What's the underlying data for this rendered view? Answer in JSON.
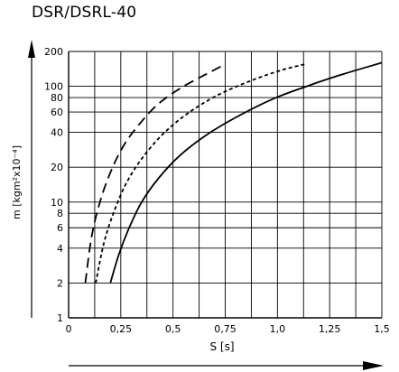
{
  "title": "DSR/DSRL-40",
  "chart_data": {
    "type": "line",
    "title": "DSR/DSRL-40",
    "xlabel": "S [s]",
    "ylabel": "m [kgm²x10⁻⁴]",
    "y_scale": "log",
    "xlim": [
      0,
      1.5
    ],
    "ylim": [
      1,
      200
    ],
    "x_ticks": [
      0,
      0.25,
      0.5,
      0.75,
      1.0,
      1.25,
      1.5
    ],
    "x_tick_labels": [
      "0",
      "0,25",
      "0,5",
      "0,75",
      "1,0",
      "1,25",
      "1,5"
    ],
    "y_ticks": [
      1,
      2,
      4,
      6,
      8,
      10,
      20,
      40,
      60,
      80,
      100,
      200
    ],
    "y_tick_labels": [
      "1",
      "2",
      "4",
      "6",
      "8",
      "10",
      "20",
      "40",
      "60",
      "80",
      "100",
      "200"
    ],
    "grid": true,
    "series": [
      {
        "style": "long-dash",
        "x": [
          0.08,
          0.11,
          0.15,
          0.2,
          0.26,
          0.33,
          0.42,
          0.53,
          0.65,
          0.75
        ],
        "y": [
          2,
          5,
          10,
          18,
          30,
          45,
          68,
          95,
          125,
          155
        ]
      },
      {
        "style": "short-dash",
        "x": [
          0.13,
          0.17,
          0.22,
          0.28,
          0.36,
          0.46,
          0.58,
          0.72,
          0.88,
          1.02,
          1.13
        ],
        "y": [
          2,
          4.5,
          8.5,
          15,
          25,
          40,
          60,
          85,
          113,
          138,
          155
        ]
      },
      {
        "style": "solid",
        "x": [
          0.2,
          0.24,
          0.29,
          0.35,
          0.43,
          0.53,
          0.66,
          0.81,
          0.98,
          1.14,
          1.3,
          1.5
        ],
        "y": [
          2,
          3.5,
          6,
          10,
          16,
          25,
          38,
          55,
          78,
          100,
          125,
          160
        ]
      }
    ]
  }
}
